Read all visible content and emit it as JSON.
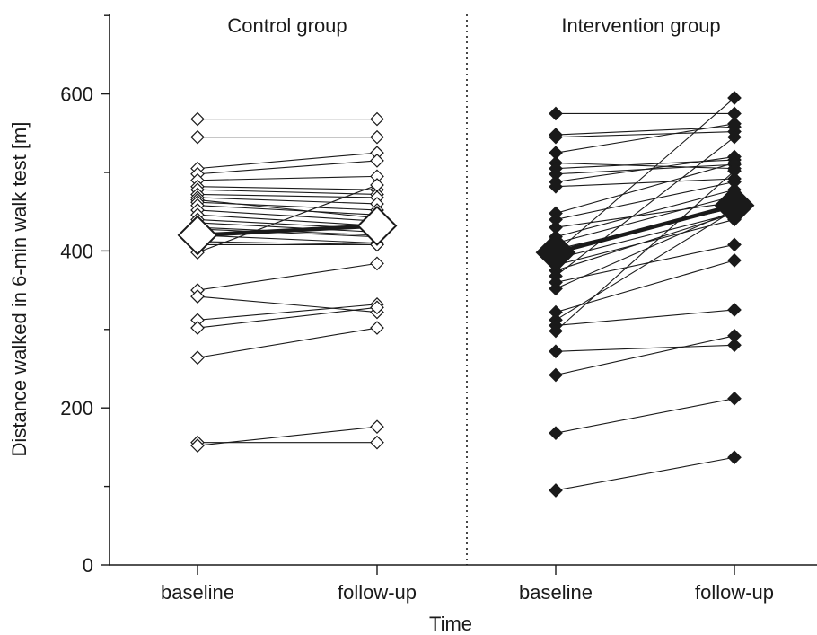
{
  "chart_data": {
    "type": "scatter",
    "xlabel": "Time",
    "ylabel": "Distance walked in 6-min walk test [m]",
    "ylim": [
      0,
      700
    ],
    "yticks": [
      0,
      200,
      400,
      600
    ],
    "grid": false,
    "categories": [
      "baseline",
      "follow-up",
      "baseline",
      "follow-up"
    ],
    "groups": [
      {
        "name": "Control group",
        "marker": "open-diamond",
        "marker_color": "#ffffff",
        "pairs": [
          [
            568,
            568
          ],
          [
            545,
            545
          ],
          [
            505,
            525
          ],
          [
            498,
            515
          ],
          [
            490,
            495
          ],
          [
            482,
            478
          ],
          [
            478,
            472
          ],
          [
            472,
            468
          ],
          [
            468,
            460
          ],
          [
            465,
            442
          ],
          [
            462,
            452
          ],
          [
            458,
            446
          ],
          [
            452,
            438
          ],
          [
            446,
            432
          ],
          [
            440,
            428
          ],
          [
            436,
            424
          ],
          [
            430,
            420
          ],
          [
            428,
            418
          ],
          [
            420,
            410
          ],
          [
            412,
            408
          ],
          [
            408,
            408
          ],
          [
            398,
            484
          ],
          [
            350,
            384
          ],
          [
            342,
            322
          ],
          [
            312,
            332
          ],
          [
            302,
            328
          ],
          [
            264,
            302
          ],
          [
            156,
            156
          ],
          [
            152,
            176
          ]
        ],
        "mean": [
          420,
          432
        ]
      },
      {
        "name": "Intervention group",
        "marker": "filled-diamond",
        "marker_color": "#1a1a1a",
        "pairs": [
          [
            575,
            575
          ],
          [
            548,
            558
          ],
          [
            545,
            552
          ],
          [
            525,
            562
          ],
          [
            512,
            505
          ],
          [
            505,
            516
          ],
          [
            498,
            510
          ],
          [
            488,
            520
          ],
          [
            482,
            492
          ],
          [
            448,
            512
          ],
          [
            440,
            488
          ],
          [
            430,
            462
          ],
          [
            418,
            478
          ],
          [
            410,
            470
          ],
          [
            402,
            455
          ],
          [
            398,
            595
          ],
          [
            390,
            448
          ],
          [
            382,
            440
          ],
          [
            375,
            448
          ],
          [
            368,
            545
          ],
          [
            360,
            408
          ],
          [
            352,
            452
          ],
          [
            322,
            388
          ],
          [
            312,
            452
          ],
          [
            305,
            325
          ],
          [
            298,
            502
          ],
          [
            272,
            280
          ],
          [
            242,
            292
          ],
          [
            168,
            212
          ],
          [
            95,
            137
          ]
        ],
        "mean": [
          398,
          458
        ]
      }
    ]
  }
}
